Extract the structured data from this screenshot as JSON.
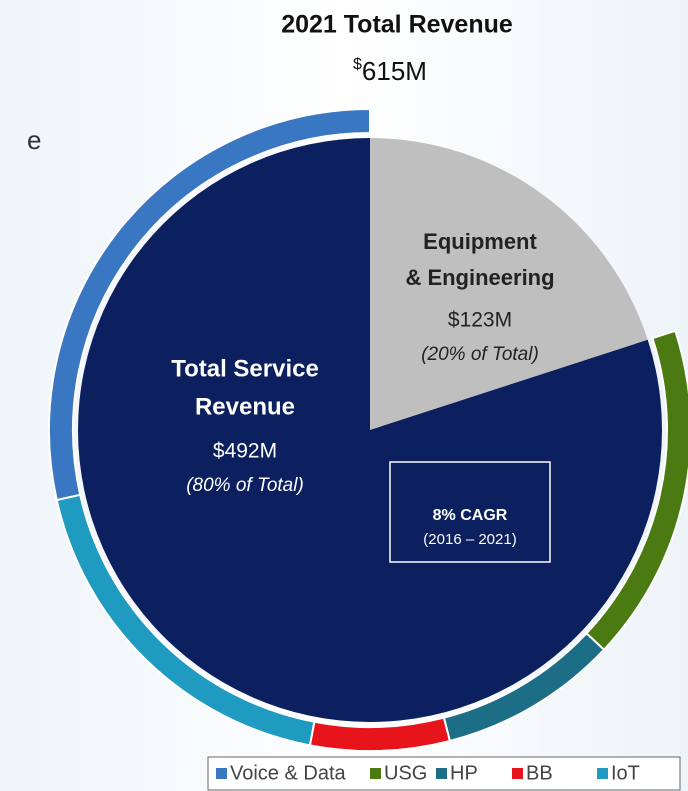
{
  "chart_data": {
    "type": "pie",
    "title": "2021 Total Revenue",
    "subtitle_currency": "$",
    "subtitle_amount": "615M",
    "left_fragment": "e",
    "labels": [
      [
        "Equipment",
        "& Engineering"
      ],
      [
        "Total Service",
        "Revenue"
      ]
    ],
    "amounts": [
      "$123M",
      "$492M"
    ],
    "values": [
      20,
      80
    ],
    "value_labels": [
      "(20% of Total)",
      "(80% of Total)"
    ],
    "colors": [
      "#bfbfbf",
      "#0c1f5e"
    ],
    "ring": [
      {
        "name": "USG",
        "color": "#4b7a12",
        "value": 17
      },
      {
        "name": "HP",
        "color": "#1b6e85",
        "value": 9
      },
      {
        "name": "BB",
        "color": "#e8141c",
        "value": 7
      },
      {
        "name": "IoT",
        "color": "#1f9ac0",
        "value": 18.5
      },
      {
        "name": "Voice & Data",
        "color": "#3a77c2",
        "value": 28.5
      }
    ],
    "legend_order": [
      4,
      0,
      1,
      2,
      3
    ],
    "annotation": {
      "title": "8% CAGR",
      "text": "(2016 – 2021)"
    }
  }
}
